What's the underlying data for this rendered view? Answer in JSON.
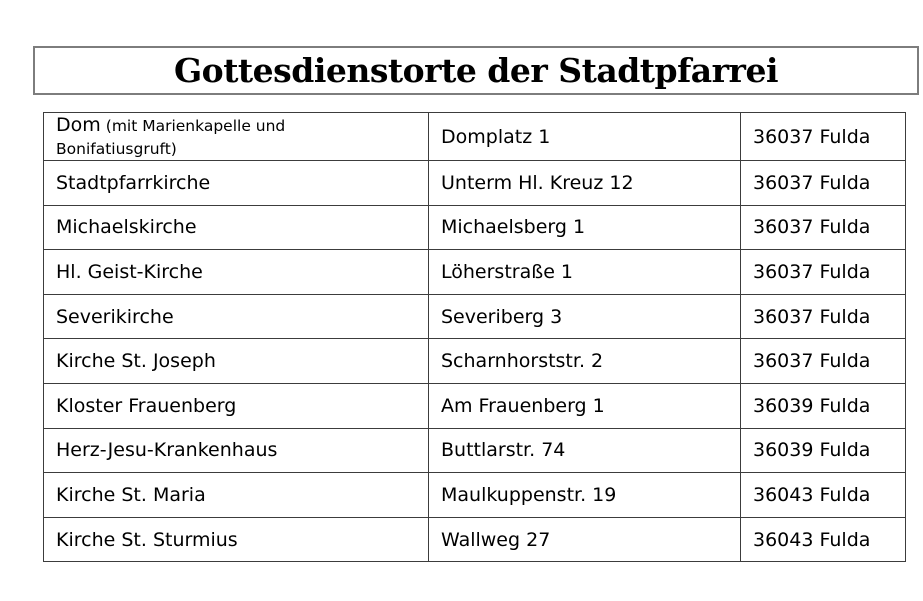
{
  "page": {
    "title": "Gottesdienstorte der Stadtpfarrei",
    "background_color": "#ffffff",
    "text_color": "#000000",
    "title_border_color": "#7d7d7d",
    "table_border_color": "#3c3c3c"
  },
  "table": {
    "columns": [
      "location",
      "address",
      "postal_city"
    ],
    "rows": [
      {
        "name": "Dom",
        "note": "(mit Marienkapelle und Bonifatiusgruft)",
        "address": "Domplatz 1",
        "city": "36037 Fulda"
      },
      {
        "name": "Stadtpfarrkirche",
        "address": "Unterm Hl. Kreuz 12",
        "city": "36037 Fulda"
      },
      {
        "name": "Michaelskirche",
        "address": "Michaelsberg 1",
        "city": "36037 Fulda"
      },
      {
        "name": "Hl. Geist-Kirche",
        "address": "Löherstraße 1",
        "city": "36037 Fulda"
      },
      {
        "name": "Severikirche",
        "address": "Severiberg 3",
        "city": "36037 Fulda"
      },
      {
        "name": "Kirche St. Joseph",
        "address": "Scharnhorststr. 2",
        "city": "36037 Fulda"
      },
      {
        "name": "Kloster Frauenberg",
        "address": "Am Frauenberg 1",
        "city": "36039 Fulda"
      },
      {
        "name": "Herz-Jesu-Krankenhaus",
        "address": "Buttlarstr. 74",
        "city": "36039 Fulda"
      },
      {
        "name": "Kirche St. Maria",
        "address": "Maulkuppenstr. 19",
        "city": "36043 Fulda"
      },
      {
        "name": "Kirche St. Sturmius",
        "address": "Wallweg 27",
        "city": "36043 Fulda"
      }
    ]
  }
}
